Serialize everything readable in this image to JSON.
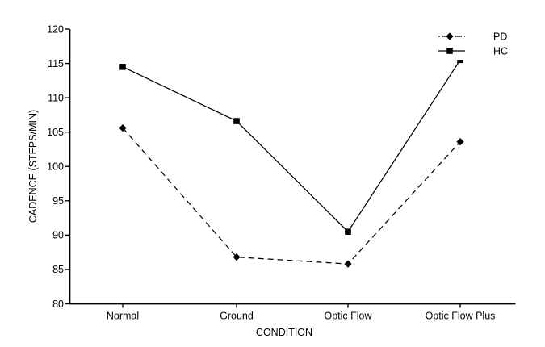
{
  "figure": {
    "background": "#ffffff"
  },
  "chart_data": {
    "type": "line",
    "title": "",
    "categories": [
      "Normal",
      "Ground",
      "Optic Flow",
      "Optic Flow Plus"
    ],
    "series": [
      {
        "name": "PD",
        "values": [
          105.6,
          86.8,
          85.8,
          103.6
        ],
        "line_style": "dashed",
        "marker": "diamond",
        "color": "#000000"
      },
      {
        "name": "HC",
        "values": [
          114.5,
          106.6,
          90.5,
          115.5
        ],
        "line_style": "solid",
        "marker": "square",
        "color": "#000000"
      }
    ],
    "xlabel": "CONDITION",
    "ylabel": "CADENCE (STEPS/MIN)",
    "ylim": [
      80,
      120
    ],
    "ytick_step": 5,
    "yticks": [
      80,
      85,
      90,
      95,
      100,
      105,
      110,
      115,
      120
    ],
    "grid": false,
    "legend": {
      "position": "top-right",
      "entries": [
        "PD",
        "HC"
      ]
    },
    "colors": {
      "stroke": "#000000",
      "text": "#000000",
      "background": "#ffffff"
    }
  }
}
